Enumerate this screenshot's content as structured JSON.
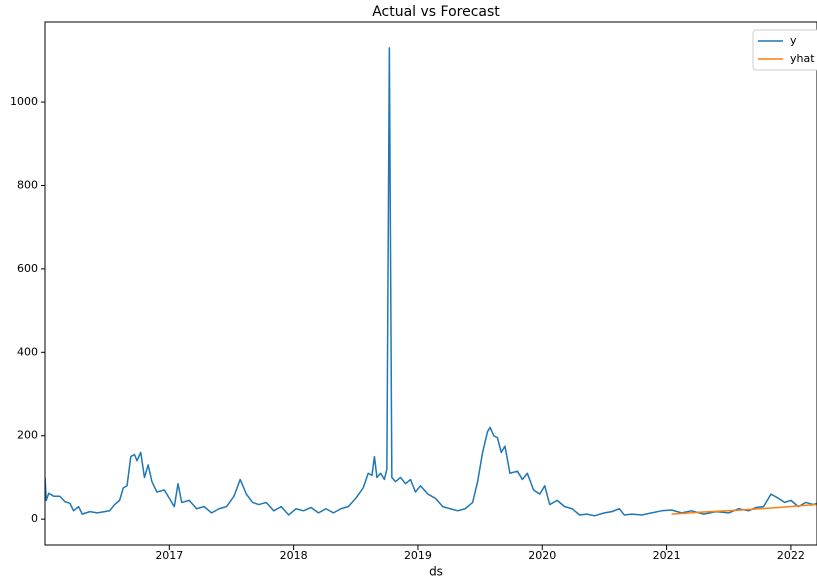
{
  "chart_data": {
    "type": "line",
    "title": "Actual vs Forecast",
    "x_label": "ds",
    "xlim": [
      2016.0,
      2022.21
    ],
    "ylim": [
      -62,
      1192
    ],
    "xticks": [
      2017,
      2018,
      2019,
      2020,
      2021,
      2022
    ],
    "yticks": [
      0,
      200,
      400,
      600,
      800,
      1000
    ],
    "legend": "upper-right",
    "series": [
      {
        "name": "y",
        "color": "#1f77b4",
        "x": [
          2016.0,
          2016.01,
          2016.03,
          2016.07,
          2016.12,
          2016.16,
          2016.2,
          2016.23,
          2016.27,
          2016.3,
          2016.36,
          2016.42,
          2016.48,
          2016.52,
          2016.56,
          2016.6,
          2016.63,
          2016.66,
          2016.69,
          2016.72,
          2016.74,
          2016.77,
          2016.8,
          2016.83,
          2016.86,
          2016.9,
          2016.96,
          2017.0,
          2017.04,
          2017.07,
          2017.1,
          2017.16,
          2017.22,
          2017.28,
          2017.34,
          2017.4,
          2017.46,
          2017.52,
          2017.57,
          2017.62,
          2017.67,
          2017.72,
          2017.78,
          2017.84,
          2017.9,
          2017.96,
          2018.02,
          2018.08,
          2018.14,
          2018.2,
          2018.26,
          2018.32,
          2018.38,
          2018.44,
          2018.5,
          2018.56,
          2018.6,
          2018.63,
          2018.65,
          2018.67,
          2018.7,
          2018.73,
          2018.75,
          2018.77,
          2018.79,
          2018.82,
          2018.86,
          2018.9,
          2018.94,
          2018.98,
          2019.02,
          2019.08,
          2019.14,
          2019.2,
          2019.26,
          2019.32,
          2019.38,
          2019.44,
          2019.48,
          2019.52,
          2019.56,
          2019.58,
          2019.61,
          2019.64,
          2019.67,
          2019.7,
          2019.74,
          2019.8,
          2019.84,
          2019.88,
          2019.93,
          2019.98,
          2020.02,
          2020.06,
          2020.12,
          2020.18,
          2020.24,
          2020.3,
          2020.36,
          2020.42,
          2020.5,
          2020.56,
          2020.62,
          2020.66,
          2020.72,
          2020.8,
          2020.88,
          2020.96,
          2021.04,
          2021.12,
          2021.2,
          2021.3,
          2021.4,
          2021.5,
          2021.58,
          2021.66,
          2021.72,
          2021.78,
          2021.84,
          2021.9,
          2021.95,
          2022.0,
          2022.06,
          2022.12,
          2022.18,
          2022.21
        ],
        "values": [
          100,
          45,
          62,
          55,
          55,
          42,
          38,
          20,
          30,
          12,
          18,
          15,
          18,
          20,
          35,
          45,
          75,
          80,
          150,
          155,
          140,
          160,
          100,
          130,
          90,
          65,
          70,
          50,
          30,
          85,
          40,
          45,
          25,
          30,
          15,
          25,
          30,
          55,
          95,
          60,
          40,
          35,
          40,
          20,
          30,
          10,
          25,
          20,
          28,
          15,
          25,
          15,
          25,
          30,
          50,
          75,
          110,
          105,
          150,
          100,
          110,
          95,
          120,
          1130,
          100,
          90,
          100,
          85,
          95,
          65,
          80,
          60,
          50,
          30,
          25,
          20,
          25,
          40,
          90,
          160,
          210,
          220,
          200,
          195,
          160,
          175,
          110,
          115,
          95,
          110,
          70,
          60,
          80,
          35,
          45,
          30,
          25,
          10,
          12,
          8,
          15,
          18,
          25,
          10,
          12,
          10,
          15,
          20,
          22,
          15,
          20,
          12,
          18,
          15,
          25,
          20,
          28,
          30,
          60,
          50,
          40,
          45,
          30,
          40,
          35,
          38
        ]
      },
      {
        "name": "yhat",
        "color": "#ff7f0e",
        "x": [
          2021.04,
          2021.3,
          2021.6,
          2021.9,
          2022.21
        ],
        "values": [
          12,
          17,
          22,
          28,
          35
        ]
      }
    ]
  }
}
